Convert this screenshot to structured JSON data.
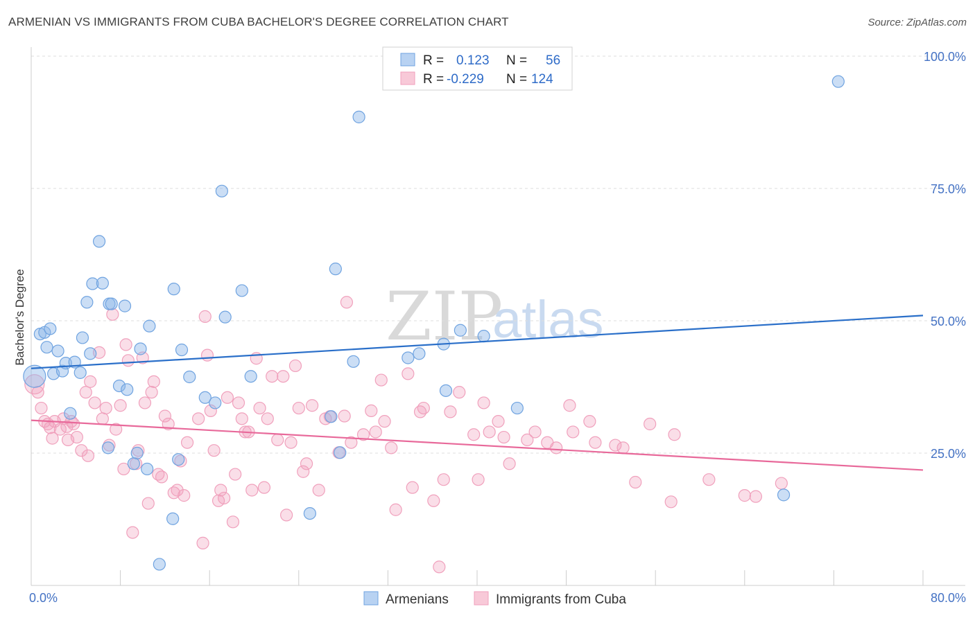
{
  "title": "ARMENIAN VS IMMIGRANTS FROM CUBA BACHELOR'S DEGREE CORRELATION CHART",
  "source": "Source: ZipAtlas.com",
  "watermark": {
    "zip": "ZIP",
    "atlas": "atlas"
  },
  "legend": {
    "rows": [
      {
        "r_label": "R =",
        "r_value": "0.123",
        "n_label": "N =",
        "n_value": "56"
      },
      {
        "r_label": "R =",
        "r_value": "-0.229",
        "n_label": "N =",
        "n_value": "124"
      }
    ]
  },
  "bottom_legend": [
    "Armenians",
    "Immigrants from Cuba"
  ],
  "chart_data": {
    "type": "scatter",
    "title": "ARMENIAN VS IMMIGRANTS FROM CUBA BACHELOR'S DEGREE CORRELATION CHART",
    "xlabel": "",
    "ylabel": "Bachelor's Degree",
    "xlim": [
      0,
      80
    ],
    "ylim": [
      0,
      100
    ],
    "x_tick_labels": [
      "0.0%",
      "80.0%"
    ],
    "y_tick_labels": [
      "100.0%",
      "75.0%",
      "50.0%",
      "25.0%"
    ],
    "y_ticks": [
      100,
      75,
      50,
      25
    ],
    "grid": true,
    "legend_position": "top-center",
    "colors": {
      "armenians": "#6fa3e0",
      "cuba": "#f0a0bc",
      "armenians_line": "#2a6fc9",
      "cuba_line": "#e8699a"
    },
    "series": [
      {
        "name": "Armenians",
        "r": 0.123,
        "n": 56,
        "trend": {
          "x": [
            0,
            80
          ],
          "y": [
            41.0,
            51.0
          ]
        },
        "points": [
          [
            0.3,
            39.5
          ],
          [
            0.8,
            47.5
          ],
          [
            1.2,
            47.8
          ],
          [
            1.4,
            45.0
          ],
          [
            1.7,
            48.5
          ],
          [
            2.0,
            40.0
          ],
          [
            2.4,
            44.3
          ],
          [
            2.8,
            40.5
          ],
          [
            3.1,
            42.0
          ],
          [
            3.5,
            32.5
          ],
          [
            3.9,
            42.2
          ],
          [
            4.4,
            40.2
          ],
          [
            4.6,
            46.8
          ],
          [
            5.0,
            53.5
          ],
          [
            5.3,
            43.8
          ],
          [
            5.5,
            57.0
          ],
          [
            6.1,
            65.0
          ],
          [
            6.4,
            57.1
          ],
          [
            6.9,
            26.0
          ],
          [
            7.0,
            53.2
          ],
          [
            7.2,
            53.2
          ],
          [
            7.9,
            37.7
          ],
          [
            8.4,
            52.8
          ],
          [
            8.6,
            37.0
          ],
          [
            9.2,
            23.0
          ],
          [
            9.5,
            25.0
          ],
          [
            9.8,
            44.7
          ],
          [
            10.4,
            22.0
          ],
          [
            10.6,
            49.0
          ],
          [
            11.5,
            4.0
          ],
          [
            12.7,
            12.6
          ],
          [
            12.8,
            56.0
          ],
          [
            13.2,
            23.8
          ],
          [
            13.5,
            44.5
          ],
          [
            14.2,
            39.4
          ],
          [
            15.6,
            35.5
          ],
          [
            16.5,
            34.5
          ],
          [
            17.1,
            74.5
          ],
          [
            17.4,
            50.7
          ],
          [
            18.9,
            55.7
          ],
          [
            19.7,
            39.5
          ],
          [
            25.0,
            13.6
          ],
          [
            26.9,
            31.9
          ],
          [
            27.3,
            59.8
          ],
          [
            27.7,
            25.1
          ],
          [
            28.9,
            42.3
          ],
          [
            29.4,
            88.5
          ],
          [
            33.8,
            43.0
          ],
          [
            34.8,
            43.8
          ],
          [
            37.0,
            45.6
          ],
          [
            37.2,
            36.8
          ],
          [
            38.5,
            48.2
          ],
          [
            40.6,
            47.1
          ],
          [
            43.6,
            33.5
          ],
          [
            67.5,
            17.1
          ],
          [
            72.4,
            95.2
          ]
        ]
      },
      {
        "name": "Immigrants from Cuba",
        "r": -0.229,
        "n": 124,
        "trend": {
          "x": [
            0,
            80
          ],
          "y": [
            31.2,
            21.8
          ]
        },
        "points": [
          [
            0.3,
            38.0
          ],
          [
            0.6,
            36.5
          ],
          [
            0.9,
            33.5
          ],
          [
            1.2,
            31.0
          ],
          [
            1.5,
            30.5
          ],
          [
            1.7,
            29.8
          ],
          [
            1.9,
            27.8
          ],
          [
            2.1,
            31.0
          ],
          [
            2.6,
            29.5
          ],
          [
            2.9,
            31.5
          ],
          [
            3.2,
            30.0
          ],
          [
            3.3,
            27.5
          ],
          [
            3.6,
            31.0
          ],
          [
            3.8,
            30.5
          ],
          [
            4.1,
            28.0
          ],
          [
            4.5,
            25.5
          ],
          [
            4.9,
            36.5
          ],
          [
            5.1,
            24.5
          ],
          [
            5.3,
            38.5
          ],
          [
            5.7,
            34.5
          ],
          [
            6.1,
            44.0
          ],
          [
            6.4,
            31.5
          ],
          [
            6.7,
            33.5
          ],
          [
            7.0,
            26.5
          ],
          [
            7.3,
            51.2
          ],
          [
            7.6,
            29.5
          ],
          [
            8.0,
            34.0
          ],
          [
            8.3,
            22.0
          ],
          [
            8.5,
            45.5
          ],
          [
            8.7,
            42.5
          ],
          [
            9.1,
            10.0
          ],
          [
            9.4,
            23.0
          ],
          [
            9.6,
            25.5
          ],
          [
            10.0,
            43.0
          ],
          [
            10.2,
            34.5
          ],
          [
            10.5,
            15.5
          ],
          [
            10.8,
            36.5
          ],
          [
            11.0,
            38.5
          ],
          [
            11.4,
            21.0
          ],
          [
            11.7,
            20.5
          ],
          [
            12.0,
            32.0
          ],
          [
            12.3,
            30.5
          ],
          [
            12.8,
            17.5
          ],
          [
            13.1,
            18.0
          ],
          [
            13.4,
            23.5
          ],
          [
            13.7,
            17.0
          ],
          [
            14.0,
            27.0
          ],
          [
            15.0,
            31.5
          ],
          [
            15.4,
            8.0
          ],
          [
            15.6,
            50.8
          ],
          [
            15.8,
            43.5
          ],
          [
            16.1,
            33.0
          ],
          [
            16.4,
            25.5
          ],
          [
            16.8,
            16.0
          ],
          [
            17.0,
            18.0
          ],
          [
            17.3,
            16.5
          ],
          [
            17.6,
            35.5
          ],
          [
            18.1,
            12.0
          ],
          [
            18.3,
            21.0
          ],
          [
            18.6,
            34.5
          ],
          [
            18.9,
            31.5
          ],
          [
            19.2,
            29.0
          ],
          [
            19.5,
            29.0
          ],
          [
            19.8,
            18.0
          ],
          [
            20.2,
            42.9
          ],
          [
            20.5,
            33.5
          ],
          [
            20.9,
            18.5
          ],
          [
            21.2,
            31.5
          ],
          [
            21.6,
            39.5
          ],
          [
            22.1,
            27.5
          ],
          [
            22.6,
            39.5
          ],
          [
            22.9,
            13.3
          ],
          [
            23.3,
            27.0
          ],
          [
            23.7,
            41.5
          ],
          [
            24.0,
            33.5
          ],
          [
            24.4,
            21.5
          ],
          [
            24.7,
            23.0
          ],
          [
            25.2,
            34.0
          ],
          [
            25.8,
            18.0
          ],
          [
            26.4,
            31.5
          ],
          [
            26.8,
            31.9
          ],
          [
            27.6,
            25.1
          ],
          [
            28.1,
            32.0
          ],
          [
            28.3,
            53.5
          ],
          [
            28.7,
            27.0
          ],
          [
            29.8,
            28.5
          ],
          [
            30.5,
            33.0
          ],
          [
            30.9,
            29.0
          ],
          [
            31.4,
            38.8
          ],
          [
            31.7,
            31.0
          ],
          [
            32.3,
            26.0
          ],
          [
            32.7,
            14.3
          ],
          [
            33.8,
            40.0
          ],
          [
            34.2,
            18.5
          ],
          [
            34.9,
            32.8
          ],
          [
            35.2,
            33.5
          ],
          [
            36.1,
            16.0
          ],
          [
            36.6,
            3.5
          ],
          [
            37.0,
            20.0
          ],
          [
            37.6,
            32.8
          ],
          [
            38.4,
            36.5
          ],
          [
            39.7,
            28.5
          ],
          [
            40.1,
            20.0
          ],
          [
            40.6,
            34.5
          ],
          [
            41.1,
            29.0
          ],
          [
            41.9,
            31.0
          ],
          [
            42.4,
            28.0
          ],
          [
            42.9,
            23.0
          ],
          [
            44.5,
            27.5
          ],
          [
            45.2,
            29.0
          ],
          [
            46.3,
            27.0
          ],
          [
            47.1,
            26.0
          ],
          [
            48.3,
            34.0
          ],
          [
            48.6,
            29.0
          ],
          [
            50.1,
            31.0
          ],
          [
            50.6,
            27.0
          ],
          [
            52.4,
            26.5
          ],
          [
            53.1,
            26.0
          ],
          [
            54.2,
            19.5
          ],
          [
            55.5,
            30.5
          ],
          [
            57.4,
            15.8
          ],
          [
            57.7,
            28.5
          ],
          [
            60.8,
            20.0
          ],
          [
            64.0,
            17.0
          ],
          [
            65.0,
            16.8
          ],
          [
            67.3,
            19.3
          ]
        ]
      }
    ]
  }
}
